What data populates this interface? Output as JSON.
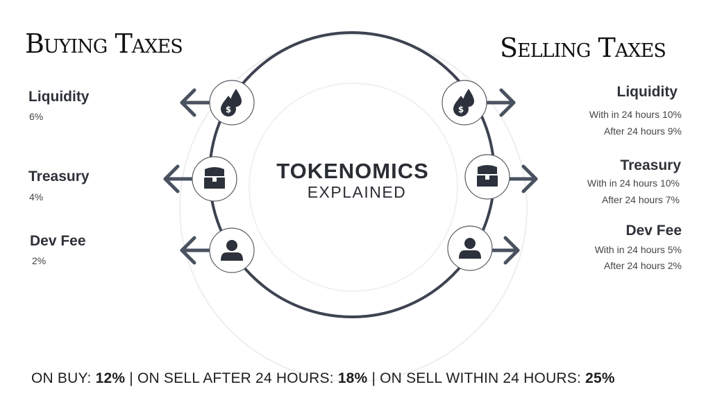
{
  "buying": {
    "heading": "Buying Taxes",
    "items": [
      {
        "title": "Liquidity",
        "value": "6%",
        "icon": "liquidity-drops-icon"
      },
      {
        "title": "Treasury",
        "value": "4%",
        "icon": "treasure-chest-icon"
      },
      {
        "title": "Dev Fee",
        "value": "2%",
        "icon": "user-icon"
      }
    ]
  },
  "selling": {
    "heading": "Selling Taxes",
    "items": [
      {
        "title": "Liquidity",
        "within": "With in 24 hours 10%",
        "after": "After 24 hours 9%",
        "icon": "liquidity-drops-icon"
      },
      {
        "title": "Treasury",
        "within": "With in 24 hours 10%",
        "after": "After 24 hours 7%",
        "icon": "treasure-chest-icon"
      },
      {
        "title": "Dev Fee",
        "within": "With in 24 hours 5%",
        "after": "After 24 hours 2%",
        "icon": "user-icon"
      }
    ]
  },
  "center": {
    "title": "TOKENOMICS",
    "subtitle": "EXPLAINED"
  },
  "summary": {
    "buy_label": "ON BUY: ",
    "buy_value": "12%",
    "sep1": " | ON SELL AFTER 24 HOURS: ",
    "sell_after_value": "18%",
    "sep2": " | ON SELL WITHIN 24 HOURS: ",
    "sell_within_value": "25%"
  },
  "colors": {
    "ring": "#3d4350",
    "arrow": "#4a5160",
    "icon": "#2c313b"
  }
}
